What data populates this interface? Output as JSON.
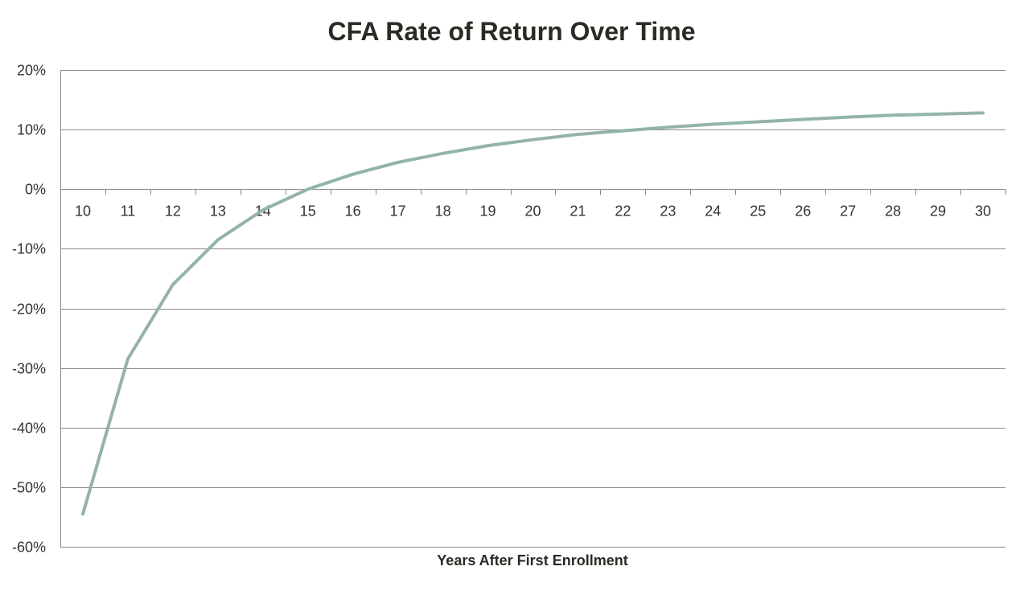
{
  "chart_data": {
    "type": "line",
    "title": "CFA Rate of Return Over Time",
    "xlabel": "Years After First Enrollment",
    "ylabel": "",
    "x": [
      10,
      11,
      12,
      13,
      14,
      15,
      16,
      17,
      18,
      19,
      20,
      21,
      22,
      23,
      24,
      25,
      26,
      27,
      28,
      29,
      30
    ],
    "series": [
      {
        "values": [
          -54.5,
          -28.5,
          -16.0,
          -8.5,
          -3.5,
          0.0,
          2.5,
          4.5,
          6.0,
          7.3,
          8.3,
          9.2,
          9.8,
          10.4,
          10.9,
          11.3,
          11.7,
          12.1,
          12.4,
          12.6,
          12.8
        ]
      }
    ],
    "ylim": [
      -60,
      20
    ],
    "yticks": [
      20,
      10,
      0,
      -10,
      -20,
      -30,
      -40,
      -50,
      -60
    ],
    "ytick_labels": [
      "20%",
      "10%",
      "0%",
      "-10%",
      "-20%",
      "-30%",
      "-40%",
      "-50%",
      "-60%"
    ],
    "xtick_labels": [
      "10",
      "11",
      "12",
      "13",
      "14",
      "15",
      "16",
      "17",
      "18",
      "19",
      "20",
      "21",
      "22",
      "23",
      "24",
      "25",
      "26",
      "27",
      "28",
      "29",
      "30"
    ],
    "grid": true,
    "legend": "none",
    "colors": {
      "line": "#93b3ac",
      "grid": "#8a8a8a",
      "title": "#2b2b24"
    }
  }
}
